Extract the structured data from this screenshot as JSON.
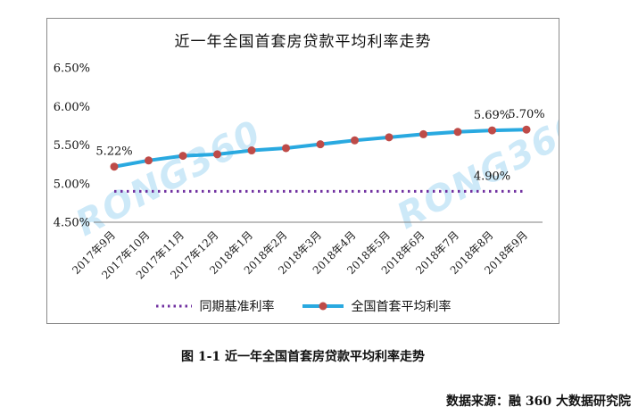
{
  "chart": {
    "watermark": "RONG360"
  },
  "chart_data": {
    "type": "line",
    "title": "近一年全国首套房贷款平均利率走势",
    "categories": [
      "2017年9月",
      "2017年10月",
      "2017年11月",
      "2017年12月",
      "2018年1月",
      "2018年2月",
      "2018年3月",
      "2018年4月",
      "2018年5月",
      "2018年6月",
      "2018年7月",
      "2018年8月",
      "2018年9月"
    ],
    "series": [
      {
        "name": "同期基准利率",
        "style": "dotted",
        "color": "#7030A0",
        "values": [
          4.9,
          4.9,
          4.9,
          4.9,
          4.9,
          4.9,
          4.9,
          4.9,
          4.9,
          4.9,
          4.9,
          4.9,
          4.9
        ]
      },
      {
        "name": "全国首套平均利率",
        "style": "solid",
        "color": "#29A9E0",
        "marker_color": "#BE4B48",
        "values": [
          5.22,
          5.3,
          5.36,
          5.38,
          5.43,
          5.46,
          5.51,
          5.56,
          5.6,
          5.64,
          5.67,
          5.69,
          5.7
        ]
      }
    ],
    "ylim": [
      4.5,
      6.5
    ],
    "y_ticks": [
      {
        "label": "6.50%",
        "value": 6.5
      },
      {
        "label": "6.00%",
        "value": 6.0
      },
      {
        "label": "5.50%",
        "value": 5.5
      },
      {
        "label": "5.00%",
        "value": 5.0
      },
      {
        "label": "4.50%",
        "value": 4.5
      }
    ],
    "point_labels": [
      {
        "text": "5.22%",
        "series": 1,
        "x_index": 0
      },
      {
        "text": "5.69%",
        "series": 1,
        "x_index": 11
      },
      {
        "text": "5.70%",
        "series": 1,
        "x_index": 12
      },
      {
        "text": "4.90%",
        "series": 0,
        "x_index": 11
      }
    ],
    "legend_position": "bottom",
    "grid": false
  },
  "caption": "图 1-1 近一年全国首套房贷款平均利率走势",
  "source": "数据来源：融 360 大数据研究院"
}
